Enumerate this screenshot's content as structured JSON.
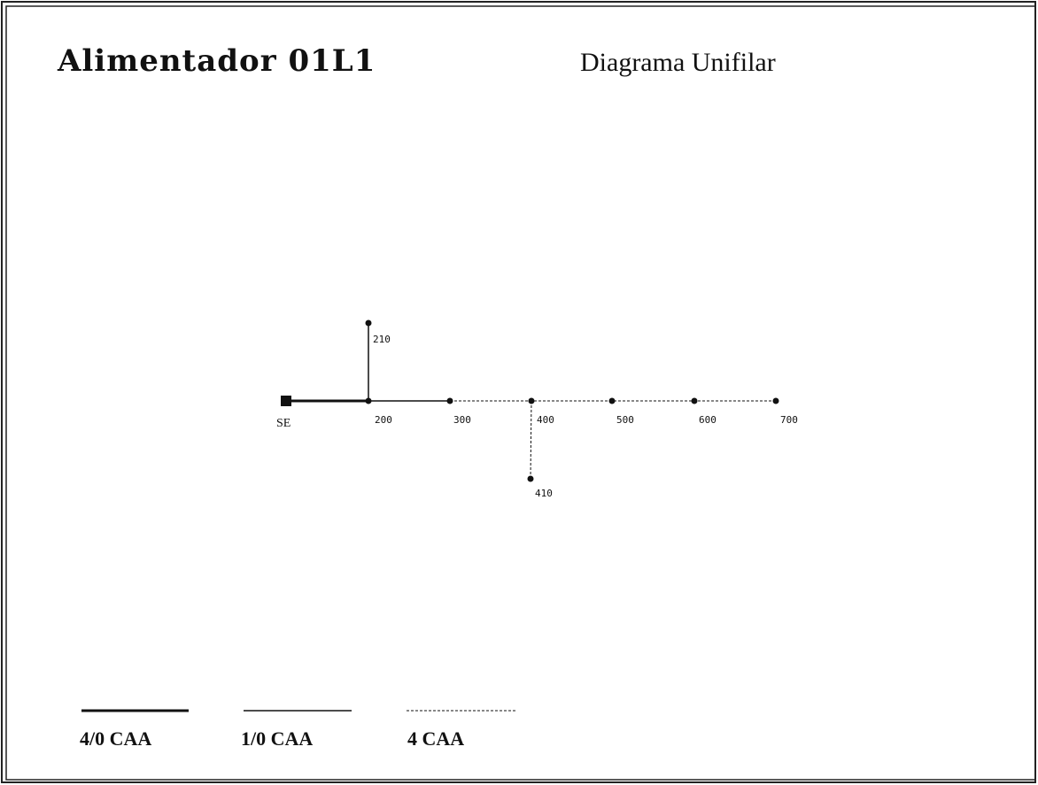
{
  "header": {
    "title": "Alimentador 01L1",
    "subtitle": "Diagrama Unifilar"
  },
  "nodes": [
    {
      "label": "SE"
    },
    {
      "label": "200"
    },
    {
      "label": "210"
    },
    {
      "label": "300"
    },
    {
      "label": "400"
    },
    {
      "label": "410"
    },
    {
      "label": "500"
    },
    {
      "label": "600"
    },
    {
      "label": "700"
    }
  ],
  "legend": [
    {
      "label": "4/0 CAA"
    },
    {
      "label": "1/0 CAA"
    },
    {
      "label": "4 CAA"
    }
  ]
}
